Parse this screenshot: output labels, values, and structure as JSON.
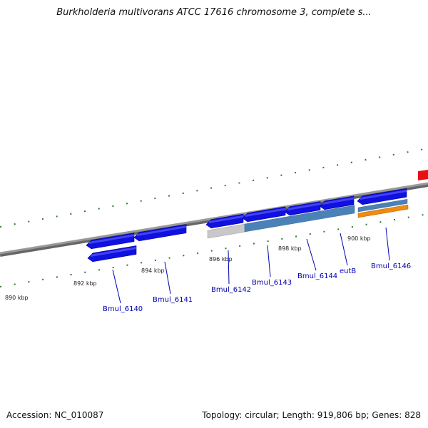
{
  "title": "Burkholderia multivorans ATCC 17616 chromosome 3, complete s...",
  "footer": {
    "accession": "Accession: NC_010087",
    "topology": "Topology: circular; Length: 919,806 bp; Genes: 828"
  },
  "ruler": [
    {
      "label": "890 kbp"
    },
    {
      "label": "892 kbp"
    },
    {
      "label": "894 kbp"
    },
    {
      "label": "896 kbp"
    },
    {
      "label": "898 kbp"
    },
    {
      "label": "900 kbp"
    }
  ],
  "genes": [
    {
      "label": "Bmul_6140"
    },
    {
      "label": "Bmul_6141"
    },
    {
      "label": "Bmul_6142"
    },
    {
      "label": "Bmul_6143"
    },
    {
      "label": "Bmul_6144"
    },
    {
      "label": "eutB"
    },
    {
      "label": "Bmul_6146"
    }
  ],
  "colors": {
    "cds": "#1010e0",
    "rna_gray": "#c8c8c8",
    "feature_steel": "#4a82b8",
    "feature_orange": "#f08a10",
    "backbone": "#8a8a8a",
    "ticks": "#2a7a2a",
    "gene_label": "#0000b0",
    "red_block": "#e81010"
  }
}
